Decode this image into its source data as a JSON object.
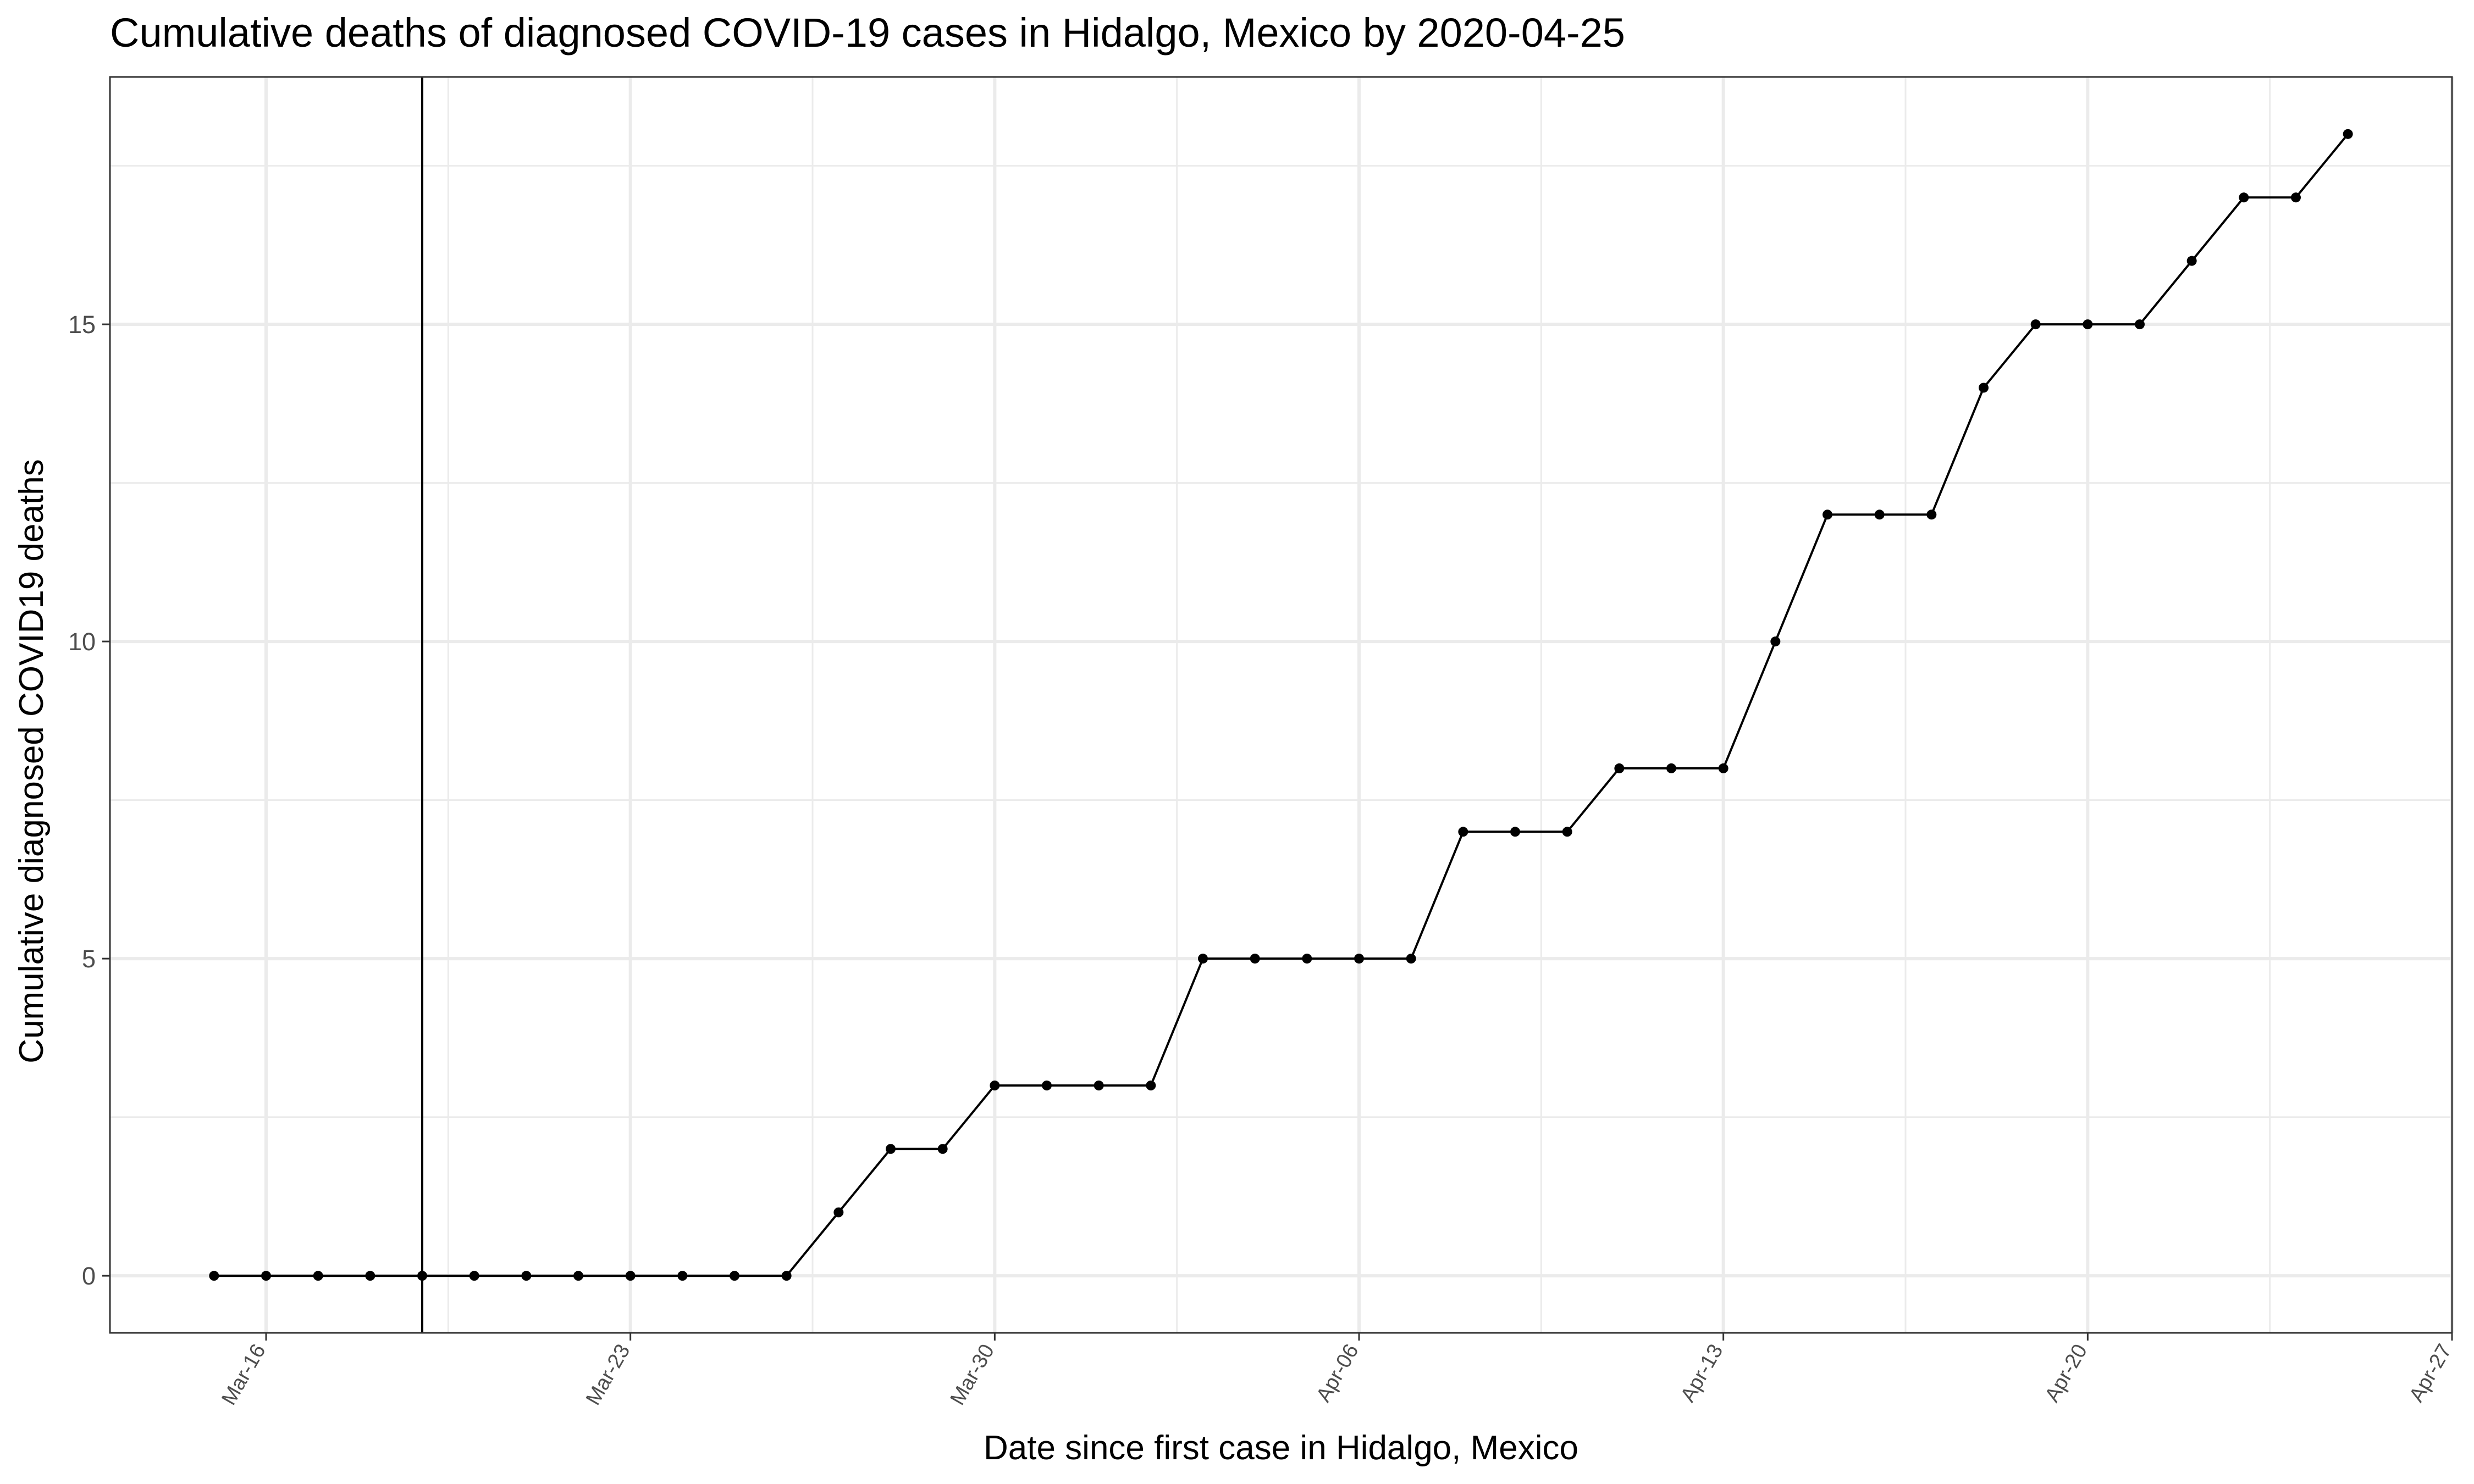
{
  "chart_data": {
    "type": "line",
    "title": "Cumulative deaths of diagnosed COVID-19 cases in Hidalgo, Mexico by 2020-04-25",
    "xlabel": "Date since first case in Hidalgo, Mexico",
    "ylabel": "Cumulative diagnosed COVID19 deaths",
    "x_tick_labels": [
      "Mar-16",
      "Mar-23",
      "Mar-30",
      "Apr-06",
      "Apr-13",
      "Apr-20",
      "Apr-27"
    ],
    "x_tick_dates": [
      "2020-03-16",
      "2020-03-23",
      "2020-03-30",
      "2020-04-06",
      "2020-04-13",
      "2020-04-20",
      "2020-04-27"
    ],
    "y_ticks": [
      0,
      5,
      10,
      15
    ],
    "xlim": [
      "2020-03-13",
      "2020-04-27"
    ],
    "ylim": [
      -0.9,
      18.9
    ],
    "vertical_line_date": "2020-03-19",
    "grid": true,
    "x": [
      "2020-03-15",
      "2020-03-16",
      "2020-03-17",
      "2020-03-18",
      "2020-03-19",
      "2020-03-20",
      "2020-03-21",
      "2020-03-22",
      "2020-03-23",
      "2020-03-24",
      "2020-03-25",
      "2020-03-26",
      "2020-03-27",
      "2020-03-28",
      "2020-03-29",
      "2020-03-30",
      "2020-03-31",
      "2020-04-01",
      "2020-04-02",
      "2020-04-03",
      "2020-04-04",
      "2020-04-05",
      "2020-04-06",
      "2020-04-07",
      "2020-04-08",
      "2020-04-09",
      "2020-04-10",
      "2020-04-11",
      "2020-04-12",
      "2020-04-13",
      "2020-04-14",
      "2020-04-15",
      "2020-04-16",
      "2020-04-17",
      "2020-04-18",
      "2020-04-19",
      "2020-04-20",
      "2020-04-21",
      "2020-04-22",
      "2020-04-23",
      "2020-04-24",
      "2020-04-25"
    ],
    "y": [
      0,
      0,
      0,
      0,
      0,
      0,
      0,
      0,
      0,
      0,
      0,
      0,
      1,
      2,
      2,
      3,
      3,
      3,
      3,
      5,
      5,
      5,
      5,
      5,
      7,
      7,
      7,
      8,
      8,
      8,
      10,
      12,
      12,
      12,
      14,
      15,
      15,
      15,
      16,
      17,
      17,
      18
    ],
    "line_color": "#000000",
    "point_color": "#000000",
    "grid_color": "#ebebeb",
    "border_color": "#333333"
  }
}
